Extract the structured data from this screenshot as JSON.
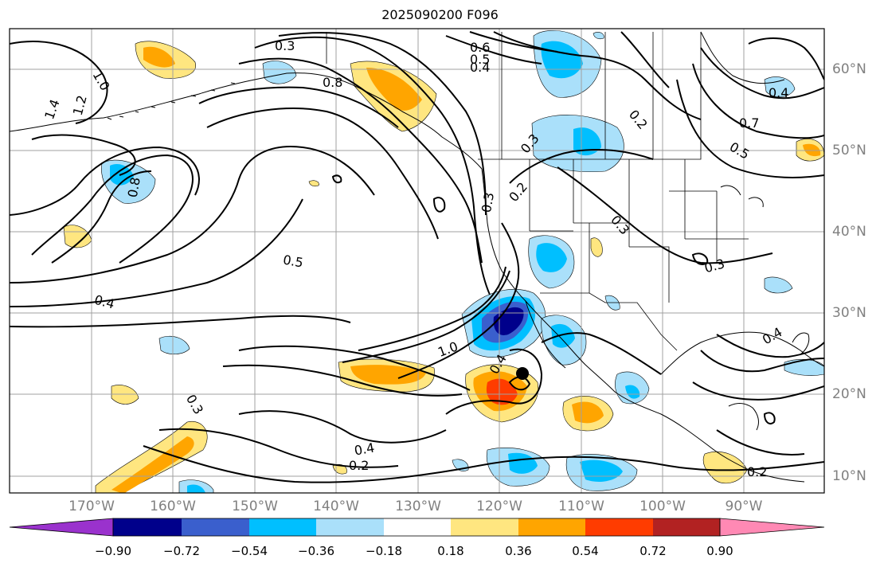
{
  "title": "2025090200 F096",
  "map": {
    "projection": "equirectangular",
    "lon_range": [
      -180,
      -80
    ],
    "lat_range": [
      8,
      65
    ],
    "gridlines": true,
    "lon_labels": [
      "170°W",
      "160°W",
      "150°W",
      "140°W",
      "130°W",
      "120°W",
      "110°W",
      "100°W",
      "90°W"
    ],
    "lat_labels": [
      "60°N",
      "50°N",
      "40°N",
      "30°N",
      "20°N",
      "10°N"
    ],
    "contour_labels": [
      "0.3",
      "0.6",
      "0.5",
      "0.4",
      "0.8",
      "1.0",
      "1.4",
      "1.2",
      "0.7",
      "0.2",
      "0.5",
      "0.4",
      "0.8",
      "1.0",
      "0.4",
      "0.2",
      "0.3",
      "0.3",
      "0.4",
      "0.3",
      "0.2",
      "0.4",
      "0.3",
      "0.3",
      "0.5",
      "0.2",
      "0.4"
    ],
    "colors": {
      "contour": "#000000",
      "grid": "#a0a0a0",
      "coast": "#000000"
    }
  },
  "colorbar": {
    "ticks": [
      "−0.90",
      "−0.72",
      "−0.54",
      "−0.36",
      "−0.18",
      "0.18",
      "0.36",
      "0.54",
      "0.72",
      "0.90"
    ],
    "colors": [
      "#9a32cd",
      "#00008b",
      "#3a5fcd",
      "#00bfff",
      "#aae0fa",
      "#ffffff",
      "#ffe680",
      "#ffa500",
      "#ff3c00",
      "#b22222",
      "#ff89b4"
    ]
  }
}
